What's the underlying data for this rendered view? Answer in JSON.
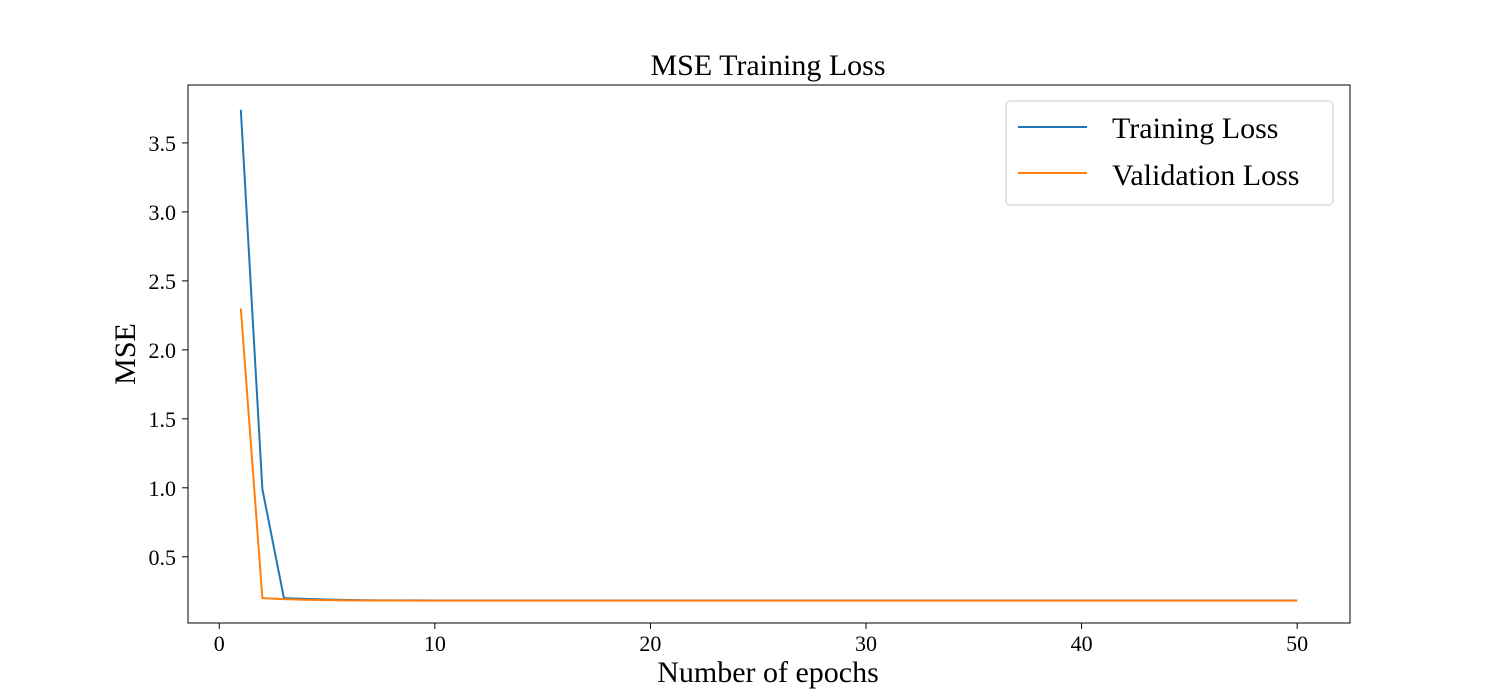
{
  "chart_data": {
    "type": "line",
    "title": "MSE Training Loss",
    "xlabel": "Number of epochs",
    "ylabel": "MSE",
    "xlim": [
      -1.45,
      52.45
    ],
    "ylim": [
      0.02,
      3.92
    ],
    "xticks": [
      0,
      10,
      20,
      30,
      40,
      50
    ],
    "yticks": [
      0.5,
      1.0,
      1.5,
      2.0,
      2.5,
      3.0,
      3.5
    ],
    "xtick_labels": [
      "0",
      "10",
      "20",
      "30",
      "40",
      "50"
    ],
    "ytick_labels": [
      "0.5",
      "1.0",
      "1.5",
      "2.0",
      "2.5",
      "3.0",
      "3.5"
    ],
    "grid": false,
    "legend_position": "top-right",
    "series": [
      {
        "name": "Training Loss",
        "color": "#1f77b4",
        "x": [
          1,
          2,
          3,
          4,
          5,
          6,
          7,
          8,
          9,
          10,
          11,
          12,
          13,
          14,
          15,
          16,
          17,
          18,
          19,
          20,
          21,
          22,
          23,
          24,
          25,
          26,
          27,
          28,
          29,
          30,
          31,
          32,
          33,
          34,
          35,
          36,
          37,
          38,
          39,
          40,
          41,
          42,
          43,
          44,
          45,
          46,
          47,
          48,
          49,
          50
        ],
        "y": [
          3.74,
          0.99,
          0.2,
          0.195,
          0.19,
          0.187,
          0.185,
          0.184,
          0.184,
          0.183,
          0.183,
          0.183,
          0.183,
          0.183,
          0.183,
          0.183,
          0.183,
          0.183,
          0.183,
          0.183,
          0.183,
          0.183,
          0.183,
          0.183,
          0.183,
          0.183,
          0.183,
          0.183,
          0.183,
          0.183,
          0.183,
          0.183,
          0.183,
          0.183,
          0.183,
          0.183,
          0.183,
          0.183,
          0.183,
          0.183,
          0.183,
          0.183,
          0.183,
          0.183,
          0.183,
          0.183,
          0.183,
          0.183,
          0.183,
          0.183
        ]
      },
      {
        "name": "Validation Loss",
        "color": "#ff7f0e",
        "x": [
          1,
          2,
          3,
          4,
          5,
          6,
          7,
          8,
          9,
          10,
          11,
          12,
          13,
          14,
          15,
          16,
          17,
          18,
          19,
          20,
          21,
          22,
          23,
          24,
          25,
          26,
          27,
          28,
          29,
          30,
          31,
          32,
          33,
          34,
          35,
          36,
          37,
          38,
          39,
          40,
          41,
          42,
          43,
          44,
          45,
          46,
          47,
          48,
          49,
          50
        ],
        "y": [
          2.3,
          0.2,
          0.193,
          0.189,
          0.186,
          0.184,
          0.183,
          0.183,
          0.182,
          0.182,
          0.182,
          0.182,
          0.182,
          0.182,
          0.182,
          0.182,
          0.182,
          0.182,
          0.182,
          0.182,
          0.182,
          0.182,
          0.182,
          0.182,
          0.182,
          0.182,
          0.182,
          0.182,
          0.182,
          0.182,
          0.182,
          0.182,
          0.182,
          0.182,
          0.182,
          0.182,
          0.182,
          0.182,
          0.182,
          0.182,
          0.182,
          0.182,
          0.182,
          0.182,
          0.182,
          0.182,
          0.182,
          0.182,
          0.182,
          0.182
        ]
      }
    ]
  }
}
